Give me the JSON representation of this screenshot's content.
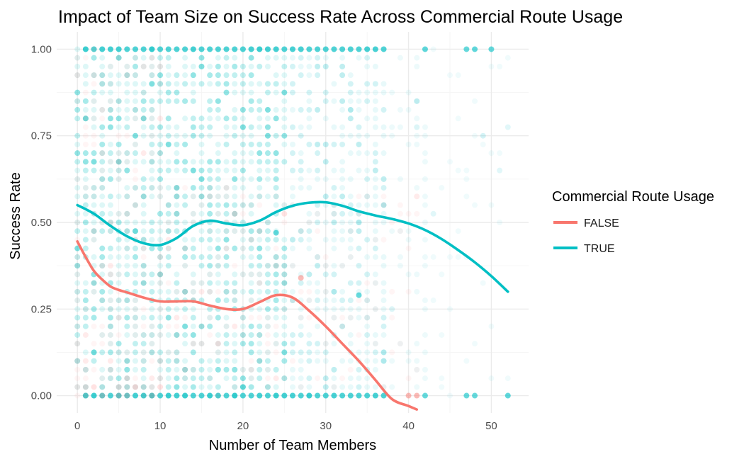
{
  "chart_data": {
    "type": "scatter",
    "title": "Impact of Team Size on Success Rate Across Commercial Route Usage",
    "xlabel": "Number of Team Members",
    "ylabel": "Success Rate",
    "xlim": [
      -2.5,
      54.5
    ],
    "ylim": [
      -0.05,
      1.05
    ],
    "x_ticks": [
      0,
      10,
      20,
      30,
      40,
      50
    ],
    "x_tick_labels": [
      "0",
      "10",
      "20",
      "30",
      "40",
      "50"
    ],
    "y_ticks": [
      0,
      0.25,
      0.5,
      0.75,
      1
    ],
    "y_tick_labels": [
      "0.00",
      "0.25",
      "0.50",
      "0.75",
      "1.00"
    ],
    "grid": true,
    "legend": {
      "title": "Commercial Route Usage",
      "placement": "right",
      "entries": [
        "FALSE",
        "TRUE"
      ]
    },
    "colors": {
      "FALSE": "#F8766D",
      "TRUE": "#00BFC4"
    },
    "series": [
      {
        "name": "FALSE",
        "kind": "smooth",
        "x": [
          0,
          1,
          2,
          3,
          4,
          5,
          6,
          8,
          10,
          12,
          14,
          16,
          18,
          20,
          22,
          24,
          26,
          28,
          30,
          32,
          34,
          36,
          38,
          40,
          41
        ],
        "y": [
          0.445,
          0.4,
          0.36,
          0.335,
          0.315,
          0.305,
          0.298,
          0.283,
          0.272,
          0.272,
          0.272,
          0.26,
          0.25,
          0.25,
          0.27,
          0.29,
          0.283,
          0.245,
          0.2,
          0.15,
          0.1,
          0.045,
          -0.01,
          -0.03,
          -0.04
        ]
      },
      {
        "name": "TRUE",
        "kind": "smooth",
        "x": [
          0,
          2,
          4,
          6,
          8,
          10,
          12,
          14,
          16,
          18,
          20,
          22,
          24,
          26,
          28,
          30,
          32,
          34,
          36,
          38,
          40,
          42,
          44,
          46,
          48,
          50,
          52
        ],
        "y": [
          0.55,
          0.525,
          0.49,
          0.46,
          0.44,
          0.435,
          0.455,
          0.49,
          0.505,
          0.497,
          0.492,
          0.505,
          0.53,
          0.548,
          0.557,
          0.558,
          0.548,
          0.532,
          0.52,
          0.51,
          0.497,
          0.478,
          0.452,
          0.42,
          0.385,
          0.345,
          0.3
        ]
      }
    ],
    "scatter_points": {
      "TRUE": {
        "x_values_with_points": [
          0,
          1,
          2,
          3,
          4,
          5,
          6,
          7,
          8,
          9,
          10,
          11,
          12,
          13,
          14,
          15,
          16,
          17,
          18,
          19,
          20,
          21,
          22,
          23,
          24,
          25,
          26,
          27,
          28,
          29,
          30,
          31,
          32,
          33,
          34,
          35,
          36,
          37,
          38,
          39,
          40,
          41,
          42,
          43,
          44,
          45,
          46,
          47,
          48,
          49,
          50,
          51,
          52
        ],
        "y_range": [
          0,
          1
        ]
      },
      "FALSE": {
        "x_values_with_points": [
          0,
          1,
          2,
          3,
          4,
          5,
          6,
          7,
          8,
          9,
          10,
          11,
          12,
          13,
          14,
          15,
          16,
          17,
          18,
          19,
          20,
          21,
          22,
          23,
          24,
          25,
          26,
          27,
          28,
          29,
          30,
          31,
          32,
          33,
          34,
          35,
          36,
          37,
          38,
          39,
          40,
          41
        ],
        "y_range": [
          0,
          1
        ]
      }
    }
  }
}
